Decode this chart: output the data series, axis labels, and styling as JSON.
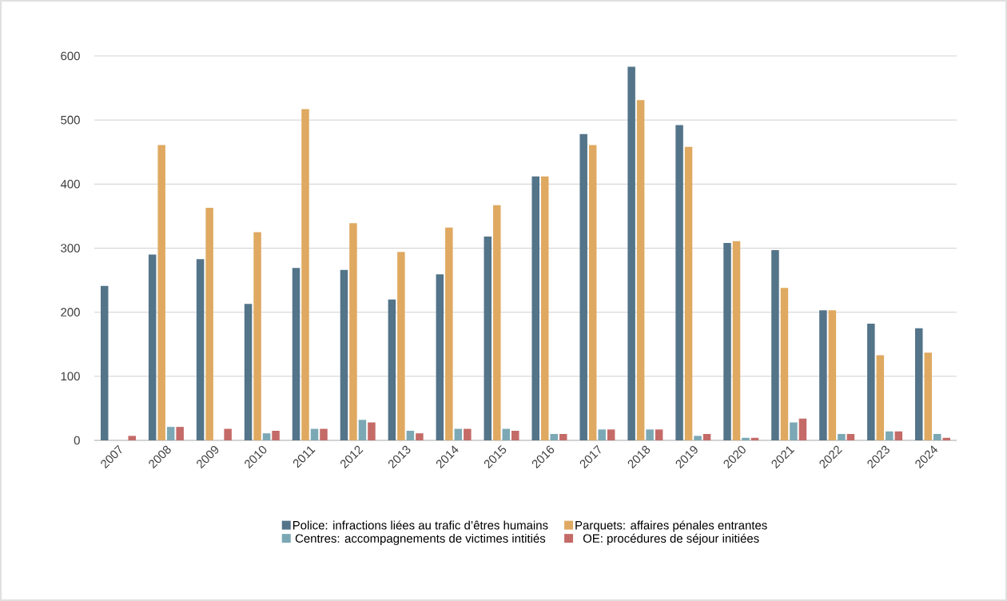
{
  "chart_data": {
    "type": "bar",
    "categories": [
      "2007",
      "2008",
      "2009",
      "2010",
      "2011",
      "2012",
      "2013",
      "2014",
      "2015",
      "2016",
      "2017",
      "2018",
      "2019",
      "2020",
      "2021",
      "2022",
      "2023",
      "2024"
    ],
    "series": [
      {
        "name": "Police: infractions liées au trafic d’êtres humains",
        "color": "#537489",
        "values": [
          241,
          290,
          283,
          213,
          269,
          266,
          220,
          259,
          318,
          412,
          478,
          583,
          492,
          308,
          297,
          203,
          182,
          175
        ]
      },
      {
        "name": "Parquets: affaires pénales entrantes",
        "color": "#dfa961",
        "values": [
          null,
          461,
          363,
          325,
          517,
          339,
          294,
          332,
          367,
          412,
          461,
          531,
          458,
          311,
          238,
          203,
          133,
          137
        ]
      },
      {
        "name": "Centres: accompagnements de victimes intitiés",
        "color": "#7ba8b4",
        "values": [
          null,
          21,
          null,
          11,
          18,
          32,
          15,
          18,
          18,
          10,
          17,
          17,
          7,
          4,
          28,
          10,
          14,
          10
        ]
      },
      {
        "name": "OE: procédures de séjour initiées",
        "color": "#c46b68",
        "values": [
          7,
          21,
          18,
          15,
          18,
          28,
          11,
          18,
          15,
          10,
          17,
          17,
          10,
          4,
          34,
          10,
          14,
          4
        ]
      }
    ],
    "ylim": [
      0,
      600
    ],
    "yticks": [
      0,
      100,
      200,
      300,
      400,
      500,
      600
    ],
    "grid": "y",
    "legend": "bottom"
  }
}
